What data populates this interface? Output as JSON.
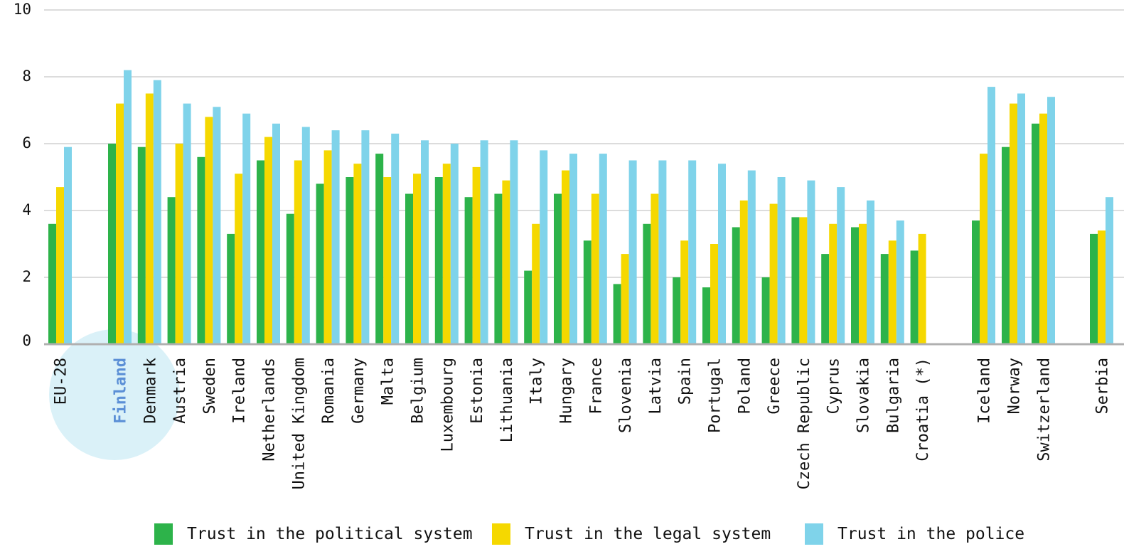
{
  "chart_data": {
    "type": "bar",
    "ylim": [
      0,
      10
    ],
    "yticks": [
      "0",
      "2",
      "4",
      "6",
      "8",
      "10"
    ],
    "grid": true,
    "legend_position": "bottom",
    "highlight_category": "Finland",
    "categories": [
      "EU-28",
      "Finland",
      "Denmark",
      "Austria",
      "Sweden",
      "Ireland",
      "Netherlands",
      "United Kingdom",
      "Romania",
      "Germany",
      "Malta",
      "Belgium",
      "Luxembourg",
      "Estonia",
      "Lithuania",
      "Italy",
      "Hungary",
      "France",
      "Slovenia",
      "Latvia",
      "Spain",
      "Portugal",
      "Poland",
      "Greece",
      "Czech Republic",
      "Cyprus",
      "Slovakia",
      "Bulgaria",
      "Croatia (*)",
      "Iceland",
      "Norway",
      "Switzerland",
      "Serbia"
    ],
    "series": [
      {
        "name": "Trust in the political system",
        "color": "#2db34a",
        "values": [
          3.6,
          6.0,
          5.9,
          4.4,
          5.6,
          3.3,
          5.5,
          3.9,
          4.8,
          5.0,
          5.7,
          4.5,
          5.0,
          4.4,
          4.5,
          2.2,
          4.5,
          3.1,
          1.8,
          3.6,
          2.0,
          1.7,
          3.5,
          2.0,
          3.8,
          2.7,
          3.5,
          2.7,
          2.8,
          3.7,
          5.9,
          6.6,
          3.3
        ]
      },
      {
        "name": "Trust in the legal system",
        "color": "#f5d800",
        "values": [
          4.7,
          7.2,
          7.5,
          6.0,
          6.8,
          5.1,
          6.2,
          5.5,
          5.8,
          5.4,
          5.0,
          5.1,
          5.4,
          5.3,
          4.9,
          3.6,
          5.2,
          4.5,
          2.7,
          4.5,
          3.1,
          3.0,
          4.3,
          4.2,
          3.8,
          3.6,
          3.6,
          3.1,
          3.3,
          5.7,
          7.2,
          6.9,
          3.4
        ]
      },
      {
        "name": "Trust in the police",
        "color": "#7fd3ea",
        "values": [
          5.9,
          8.2,
          7.9,
          7.2,
          7.1,
          6.9,
          6.6,
          6.5,
          6.4,
          6.4,
          6.3,
          6.1,
          6.0,
          6.1,
          6.1,
          5.8,
          5.7,
          5.7,
          5.5,
          5.5,
          5.5,
          5.4,
          5.2,
          5.0,
          4.9,
          4.7,
          4.3,
          3.7,
          null,
          7.7,
          7.5,
          7.4,
          4.4
        ]
      }
    ]
  }
}
